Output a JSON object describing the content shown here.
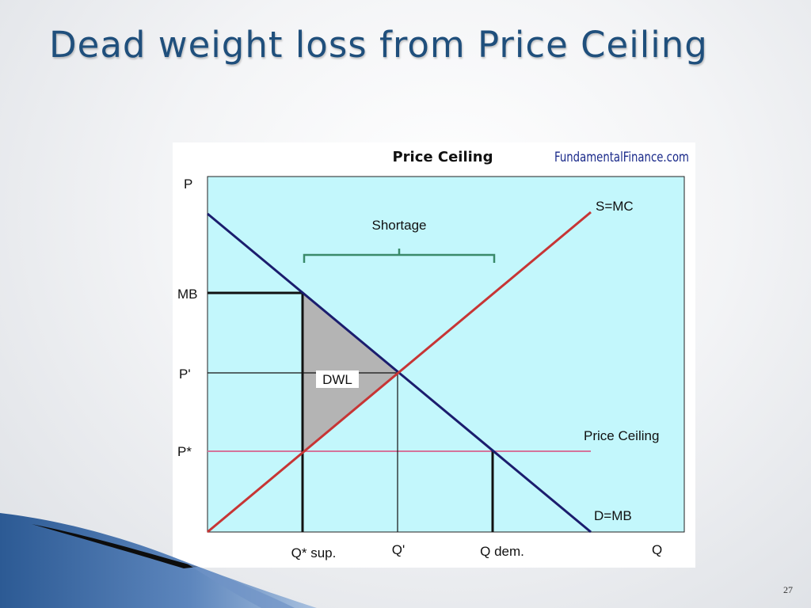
{
  "slide": {
    "title": "Dead weight loss from Price Ceiling",
    "number": "27"
  },
  "diagram": {
    "header": "Price Ceiling",
    "brand": "FundamentalFinance.com",
    "axis_y_label": "P",
    "axis_x_label": "Q",
    "price_labels": {
      "mb": "MB",
      "p_prime": "P'",
      "p_star": "P*"
    },
    "quantity_labels": {
      "q_sup": "Q* sup.",
      "q_prime": "Q'",
      "q_dem": "Q dem."
    },
    "curve_labels": {
      "supply": "S=MC",
      "demand": "D=MB",
      "ceiling": "Price Ceiling"
    },
    "region_labels": {
      "shortage": "Shortage",
      "dwl": "DWL"
    },
    "colors": {
      "plot_bg": "#c3f7fc",
      "demand": "#1b1d6e",
      "supply": "#c73535",
      "ceiling_line": "#d4749a",
      "dwl_fill": "#b4b4b4",
      "bracket": "#3a8a6a",
      "title": "#1f4f7c"
    }
  }
}
